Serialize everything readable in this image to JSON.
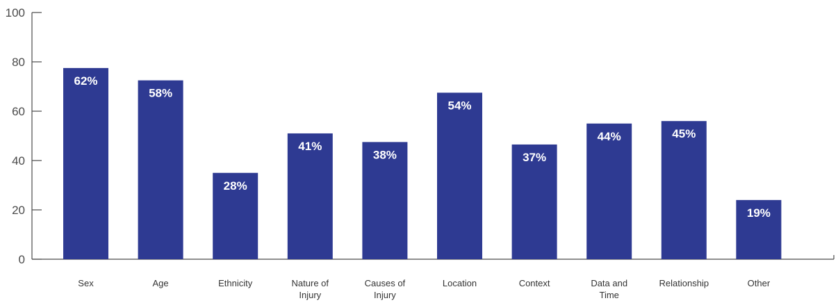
{
  "colors": {
    "bar": "#2e3a92",
    "axis": "#4a4a4a",
    "label": "#ffffff"
  },
  "chart_data": {
    "type": "bar",
    "title": "",
    "xlabel": "",
    "ylabel": "",
    "ylim": [
      0,
      100
    ],
    "yticks": [
      "0",
      "20",
      "40",
      "60",
      "80",
      "100"
    ],
    "categories": [
      [
        "Sex"
      ],
      [
        "Age"
      ],
      [
        "Ethnicity"
      ],
      [
        "Nature of",
        "Injury"
      ],
      [
        "Causes of",
        "Injury"
      ],
      [
        "Location"
      ],
      [
        "Context"
      ],
      [
        "Data and",
        "Time"
      ],
      [
        "Relationship"
      ],
      [
        "Other"
      ]
    ],
    "values": [
      77.5,
      72.5,
      35,
      51,
      47.5,
      67.5,
      46.5,
      55,
      56,
      24
    ],
    "data_labels": [
      "62%",
      "58%",
      "28%",
      "41%",
      "38%",
      "54%",
      "37%",
      "44%",
      "45%",
      "19%"
    ],
    "grid": false,
    "legend": "none"
  }
}
